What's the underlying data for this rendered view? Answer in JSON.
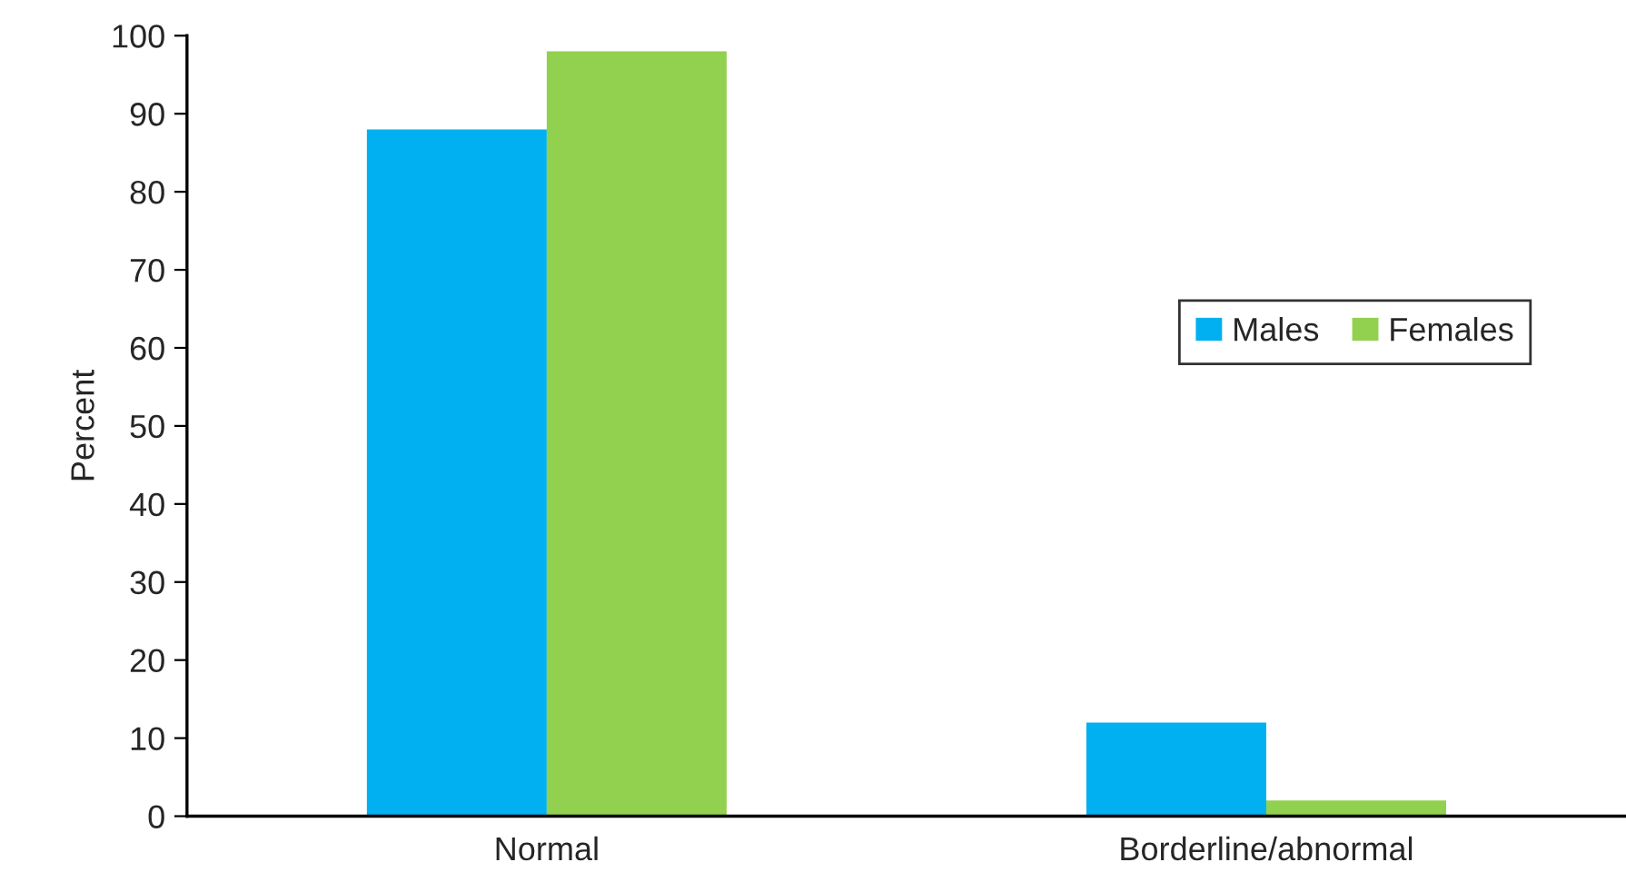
{
  "chart_data": {
    "type": "bar",
    "ylabel": "Percent",
    "categories": [
      "Normal",
      "Borderline/abnormal"
    ],
    "series": [
      {
        "name": "Males",
        "color": "#00b0f0",
        "values": [
          88,
          12
        ]
      },
      {
        "name": "Females",
        "color": "#92d050",
        "values": [
          98,
          2
        ]
      }
    ],
    "ylim": [
      0,
      100
    ],
    "yticks": [
      0,
      10,
      20,
      30,
      40,
      50,
      60,
      70,
      80,
      90,
      100
    ],
    "grid": false,
    "legend": "right"
  }
}
